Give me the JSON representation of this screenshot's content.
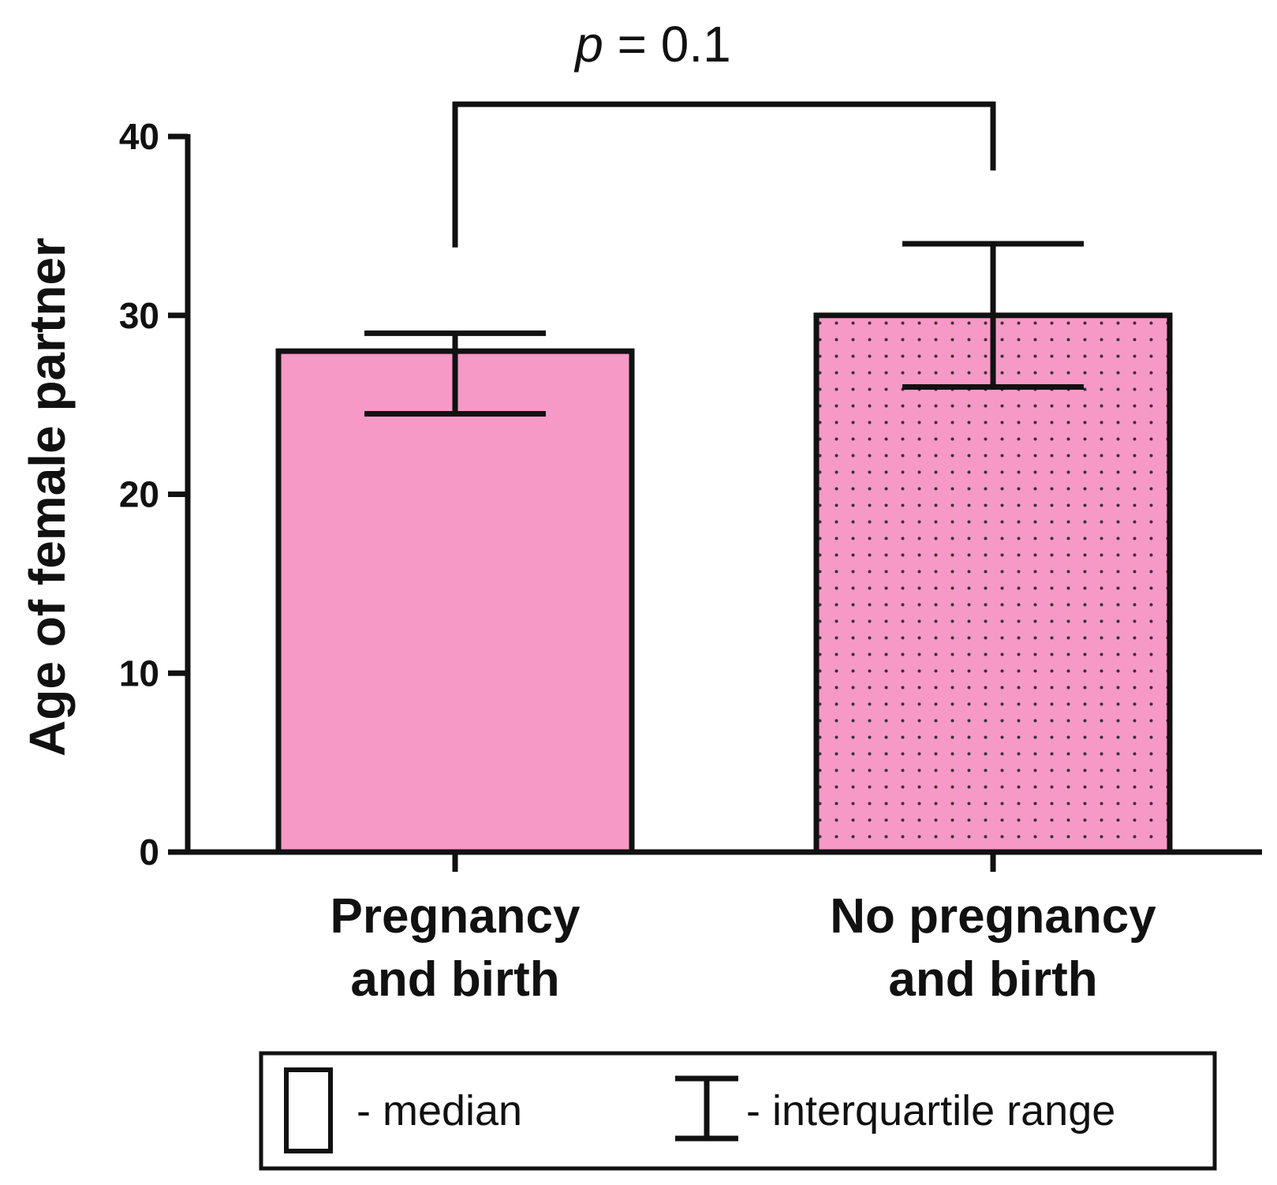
{
  "chart_data": {
    "type": "bar",
    "categories": [
      "Pregnancy and birth",
      "No pregnancy and birth"
    ],
    "category_lines": [
      [
        "Pregnancy",
        "and birth"
      ],
      [
        "No pregnancy",
        "and birth"
      ]
    ],
    "values": [
      28,
      30
    ],
    "iqr_low": [
      24.5,
      26
    ],
    "iqr_high": [
      29,
      34
    ],
    "fills": [
      "solid",
      "dotted"
    ],
    "bar_color": "#f799c6",
    "dot_color": "#333333",
    "ylabel": "Age of female partner",
    "ylim": [
      0,
      40
    ],
    "yticks": [
      0,
      10,
      20,
      30,
      40
    ],
    "significance": {
      "p_symbol": "p",
      "p_rest": " = 0.1",
      "left_end": 33.8,
      "right_end": 38.1,
      "top": 41.8
    },
    "legend": {
      "placement": "bottom",
      "items": [
        {
          "symbol": "box",
          "label": "- median"
        },
        {
          "symbol": "errorbar",
          "label": "- interquartile range"
        }
      ]
    }
  }
}
